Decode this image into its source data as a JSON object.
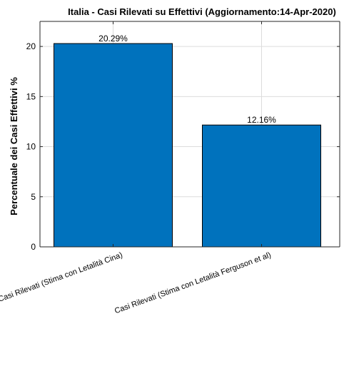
{
  "chart_data": {
    "type": "bar",
    "title": "Italia - Casi Rilevati su Effettivi (Aggiornamento:14-Apr-2020)",
    "xlabel": "",
    "ylabel": "Percentuale dei Casi Effettivi %",
    "categories": [
      "Casi Rilevati (Stima con Letalità Cina)",
      "Casi Rilevati (Stima con Letalità Ferguson et al)"
    ],
    "values": [
      20.29,
      12.16
    ],
    "data_labels": [
      "20.29%",
      "12.16%"
    ],
    "ylim": [
      0,
      22.5
    ],
    "yticks": [
      0,
      5,
      10,
      15,
      20
    ],
    "grid": true,
    "bar_color": "#0072bd",
    "bar_edge_color": "#000000"
  }
}
